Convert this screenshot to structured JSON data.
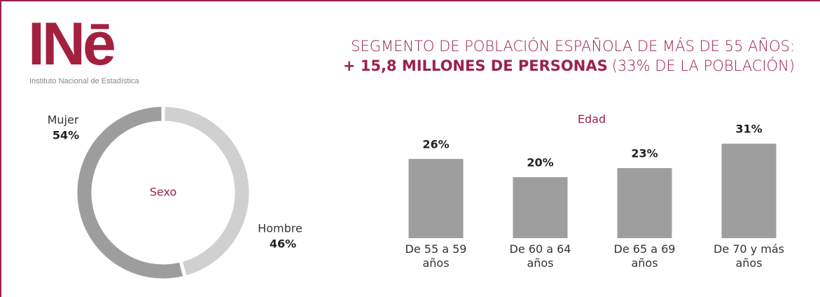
{
  "header": {
    "logo": "INē",
    "logo_caption": "Instituto Nacional de Estadística",
    "title": "SEGMENTO DE POBLACIÓN ESPAÑOLA DE MÁS DE 55 AÑOS:",
    "subtitle_bold": "+ 15,8 MILLONES DE PERSONAS",
    "subtitle_rest": "(33% DE LA POBLACIÓN)"
  },
  "chart_data": [
    {
      "type": "pie",
      "title": "Sexo",
      "categories": [
        "Hombre",
        "Mujer"
      ],
      "values": [
        46,
        54
      ],
      "value_labels": [
        "46%",
        "54%"
      ],
      "colors": [
        "#d0d0d0",
        "#9d9d9d"
      ]
    },
    {
      "type": "bar",
      "title": "Edad",
      "categories": [
        "De 55 a 59 años",
        "De 60 a 64 años",
        "De 65 a 69 años",
        "De 70 y más años"
      ],
      "values": [
        26,
        20,
        23,
        31
      ],
      "value_labels": [
        "26%",
        "20%",
        "23%",
        "31%"
      ],
      "color": "#9e9e9e"
    }
  ]
}
